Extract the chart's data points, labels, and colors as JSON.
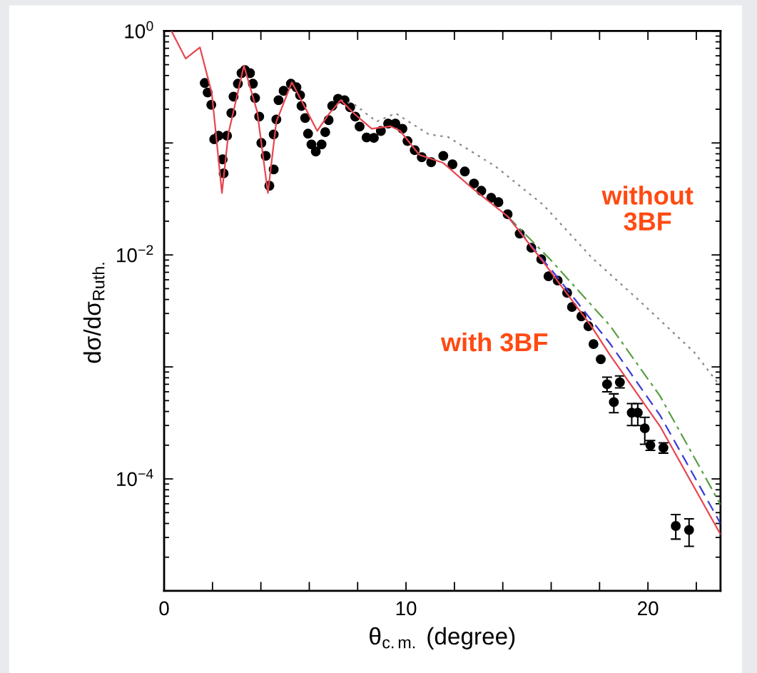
{
  "chart_data": {
    "type": "line",
    "xlabel": "θ$_{c.m.}$ (degree)",
    "ylabel": "dσ/dσ$_{Ruth.}$",
    "log": "y",
    "grid": false,
    "legend": false,
    "xlim": [
      0,
      23
    ],
    "ylim": [
      1e-05,
      1
    ],
    "xticks": [
      0,
      {
        "value": 2,
        "label": null
      },
      {
        "value": 4,
        "label": null
      },
      {
        "value": 6,
        "label": null
      },
      {
        "value": 8,
        "label": null
      },
      10,
      {
        "value": 12,
        "label": null
      },
      {
        "value": 14,
        "label": null
      },
      {
        "value": 16,
        "label": null
      },
      {
        "value": 18,
        "label": null
      },
      20,
      {
        "value": 22,
        "label": null
      }
    ],
    "yticks": [
      {
        "value": 1,
        "label": "10$^{0}$"
      },
      {
        "value": 0.1,
        "label": null
      },
      {
        "value": 0.01,
        "label": "10$^{−2}$"
      },
      {
        "value": 0.001,
        "label": null
      },
      {
        "value": 0.0001,
        "label": "10$^{−4}$"
      },
      {
        "value": 1e-05,
        "label": null
      }
    ],
    "annotations": [
      "with 3BF",
      "without\n3BF"
    ],
    "series": [
      {
        "color": "#888888",
        "line_style": "dotted",
        "marker": "none",
        "x": [
          7.3,
          7.89,
          8.78,
          9.57,
          10.95,
          11.74,
          13.7,
          15.68,
          17.66,
          19.6,
          21.9,
          22.98
        ],
        "values": [
          0.241,
          0.219,
          0.155,
          0.184,
          0.119,
          0.113,
          0.0617,
          0.0279,
          0.00955,
          0.00398,
          0.00136,
          0.00068
        ]
      },
      {
        "color": "#5a9e44",
        "line_style": "dashdot",
        "marker": "none",
        "x": [
          14.2,
          15.68,
          16.0,
          18.43,
          20.5,
          23.0
        ],
        "values": [
          0.0221,
          0.0105,
          0.00891,
          0.00234,
          0.00055,
          5.9e-05
        ]
      },
      {
        "color": "#3b3bd6",
        "line_style": "dashed",
        "marker": "none",
        "x": [
          14.2,
          15.68,
          16.0,
          18.43,
          20.5,
          23.0
        ],
        "values": [
          0.0221,
          0.0089,
          0.00741,
          0.00162,
          0.00037,
          4e-05
        ]
      },
      {
        "color": "#e8454f",
        "line_style": "solid",
        "marker": "none",
        "x": [
          0.3,
          0.89,
          1.48,
          1.97,
          2.39,
          2.66,
          3.3,
          3.85,
          4.29,
          4.64,
          5.28,
          5.82,
          6.33,
          6.8,
          7.3,
          7.89,
          8.58,
          9.37,
          9.76,
          10.55,
          11.54,
          12.72,
          14.2,
          15.68,
          17.66,
          18.43,
          20.5,
          23.0
        ],
        "values": [
          1.0,
          0.567,
          0.714,
          0.279,
          0.0358,
          0.122,
          0.49,
          0.189,
          0.0358,
          0.155,
          0.348,
          0.208,
          0.128,
          0.18,
          0.241,
          0.18,
          0.134,
          0.141,
          0.128,
          0.0783,
          0.0663,
          0.0397,
          0.0221,
          0.00863,
          0.00231,
          0.00128,
          0.000295,
          3.2e-05
        ]
      },
      {
        "type": "scatter",
        "color": "#000000",
        "marker": "circle",
        "x": [
          1.68,
          1.8,
          1.95,
          2.07,
          2.25,
          2.42,
          2.46,
          2.6,
          2.78,
          2.87,
          3.05,
          3.2,
          3.34,
          3.55,
          3.67,
          3.76,
          3.93,
          4.02,
          4.2,
          4.35,
          4.53,
          4.53,
          4.64,
          4.73,
          4.94,
          5.24,
          5.47,
          5.62,
          5.68,
          5.83,
          5.95,
          6.09,
          6.27,
          6.51,
          6.66,
          6.8,
          6.95,
          7.19,
          7.46,
          7.69,
          7.9,
          8.08,
          8.37,
          8.67,
          8.96,
          9.26,
          9.56,
          9.85,
          10.06,
          10.36,
          10.65,
          11.04,
          11.54,
          11.92,
          12.43,
          12.81,
          13.11,
          13.52,
          13.82,
          14.2,
          14.7,
          15.18,
          15.59,
          15.89,
          16.27,
          16.66,
          16.86,
          17.25,
          17.54,
          17.75,
          18.05,
          18.31,
          18.59,
          18.84,
          19.33,
          19.58,
          19.87,
          20.1,
          20.64,
          21.15,
          21.7
        ],
        "values": [
          0.343,
          0.282,
          0.219,
          0.108,
          0.116,
          0.0714,
          0.0535,
          0.116,
          0.185,
          0.259,
          0.338,
          0.42,
          0.447,
          0.42,
          0.338,
          0.252,
          0.172,
          0.1,
          0.0767,
          0.0415,
          0.058,
          0.119,
          0.162,
          0.241,
          0.292,
          0.338,
          0.314,
          0.267,
          0.214,
          0.167,
          0.121,
          0.097,
          0.0839,
          0.097,
          0.125,
          0.16,
          0.214,
          0.248,
          0.241,
          0.208,
          0.172,
          0.14,
          0.112,
          0.111,
          0.128,
          0.149,
          0.149,
          0.134,
          0.104,
          0.0863,
          0.0746,
          0.0673,
          0.0767,
          0.0644,
          0.0556,
          0.0434,
          0.0374,
          0.0324,
          0.0296,
          0.0231,
          0.0155,
          0.0116,
          0.00916,
          0.00645,
          0.0059,
          0.00459,
          0.00343,
          0.00283,
          0.00231,
          0.0016,
          0.00117,
          0.0007,
          0.000485,
          0.00073,
          0.00039,
          0.00039,
          0.000283,
          0.0002,
          0.00019,
          3.8e-05,
          3.5e-05
        ],
        "errors": [
          null,
          null,
          null,
          null,
          null,
          null,
          null,
          null,
          null,
          null,
          null,
          null,
          null,
          null,
          null,
          null,
          null,
          null,
          null,
          null,
          null,
          null,
          null,
          null,
          null,
          null,
          null,
          null,
          null,
          null,
          null,
          null,
          null,
          null,
          null,
          null,
          null,
          null,
          null,
          null,
          null,
          null,
          null,
          null,
          null,
          null,
          null,
          null,
          null,
          null,
          null,
          null,
          null,
          null,
          null,
          null,
          null,
          null,
          null,
          null,
          null,
          null,
          null,
          null,
          null,
          null,
          null,
          null,
          null,
          null,
          null,
          [
            0.0006,
            0.00081
          ],
          [
            0.00039,
            0.000575
          ],
          [
            0.00065,
            0.00083
          ],
          [
            0.0003,
            0.00047
          ],
          [
            0.0003,
            0.00047
          ],
          [
            0.000204,
            0.000355
          ],
          [
            0.00018,
            0.00022
          ],
          [
            0.00017,
            0.00021
          ],
          [
            2.9e-05,
            4.8e-05
          ],
          [
            2.5e-05,
            4.4e-05
          ]
        ]
      }
    ]
  }
}
